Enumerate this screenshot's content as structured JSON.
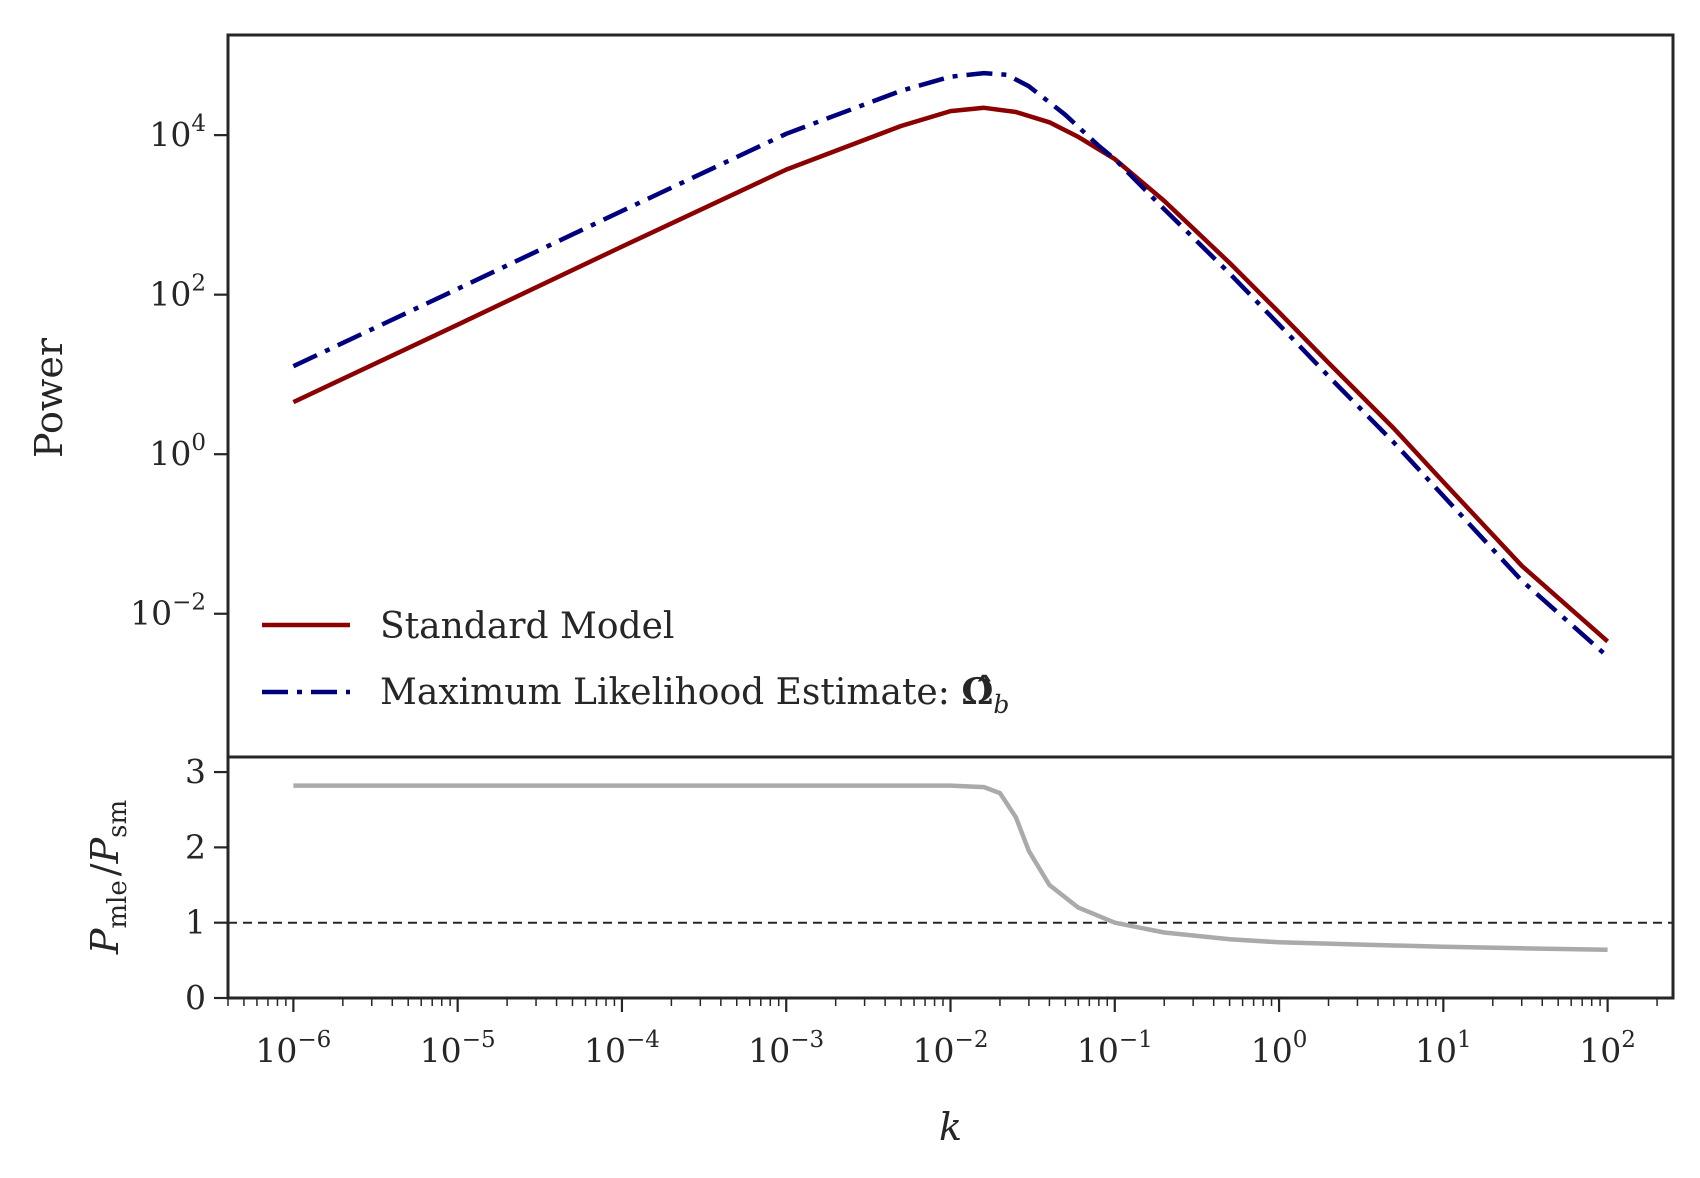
{
  "chart_data": [
    {
      "type": "line",
      "panel": "top",
      "xscale": "log",
      "yscale": "log",
      "xlim": [
        4e-07,
        250
      ],
      "ylim": [
        0.00016,
        180000
      ],
      "ylabel": "Power",
      "yticks": [
        {
          "base": "10",
          "exp": "4",
          "value": 10000
        },
        {
          "base": "10",
          "exp": "2",
          "value": 100
        },
        {
          "base": "10",
          "exp": "0",
          "value": 1
        },
        {
          "base": "10",
          "exp": "−2",
          "value": 0.01
        }
      ],
      "legend": {
        "placement": "lower-left",
        "entries": [
          {
            "label": "Standard Model",
            "color": "#8b0000",
            "style": "solid"
          },
          {
            "label": "Maximum Likelihood Estimate: ",
            "math": "Ω̂",
            "sub": "b",
            "color": "#00007f",
            "style": "dashdot"
          }
        ]
      },
      "series": [
        {
          "name": "Standard Model",
          "color": "#8b0000",
          "style": "solid",
          "points": [
            [
              1e-06,
              4.5
            ],
            [
              1e-05,
              42
            ],
            [
              0.0001,
              400
            ],
            [
              0.001,
              3700
            ],
            [
              0.005,
              13000
            ],
            [
              0.01,
              20000
            ],
            [
              0.016,
              22000
            ],
            [
              0.025,
              19500
            ],
            [
              0.04,
              14500
            ],
            [
              0.06,
              9500
            ],
            [
              0.1,
              5000
            ],
            [
              0.2,
              1500
            ],
            [
              0.5,
              250
            ],
            [
              1,
              60
            ],
            [
              2,
              14
            ],
            [
              5,
              2.1
            ],
            [
              10,
              0.45
            ],
            [
              30,
              0.04
            ],
            [
              100,
              0.0045
            ]
          ]
        },
        {
          "name": "Maximum Likelihood Estimate: Ω̂b",
          "color": "#00007f",
          "style": "dashdot",
          "points": [
            [
              1e-06,
              12.7
            ],
            [
              1e-05,
              118
            ],
            [
              0.0001,
              1120
            ],
            [
              0.001,
              10400
            ],
            [
              0.005,
              36000
            ],
            [
              0.01,
              54000
            ],
            [
              0.016,
              60000
            ],
            [
              0.022,
              57000
            ],
            [
              0.03,
              41000
            ],
            [
              0.05,
              18000
            ],
            [
              0.08,
              7300
            ],
            [
              0.1,
              5000
            ],
            [
              0.2,
              1180
            ],
            [
              0.5,
              185
            ],
            [
              1,
              42
            ],
            [
              2,
              9.5
            ],
            [
              5,
              1.4
            ],
            [
              10,
              0.3
            ],
            [
              30,
              0.026
            ],
            [
              100,
              0.0029
            ]
          ]
        }
      ]
    },
    {
      "type": "line",
      "panel": "bottom",
      "xscale": "log",
      "yscale": "linear",
      "xlim": [
        4e-07,
        250
      ],
      "ylim": [
        0,
        3.2
      ],
      "xlabel": "k",
      "ylabel": {
        "P": "P",
        "num_sub": "mle",
        "sep": "/",
        "den_sub": "sm"
      },
      "xticks": [
        {
          "base": "10",
          "exp": "−6",
          "value": 1e-06
        },
        {
          "base": "10",
          "exp": "−5",
          "value": 1e-05
        },
        {
          "base": "10",
          "exp": "−4",
          "value": 0.0001
        },
        {
          "base": "10",
          "exp": "−3",
          "value": 0.001
        },
        {
          "base": "10",
          "exp": "−2",
          "value": 0.01
        },
        {
          "base": "10",
          "exp": "−1",
          "value": 0.1
        },
        {
          "base": "10",
          "exp": "0",
          "value": 1
        },
        {
          "base": "10",
          "exp": "1",
          "value": 10
        },
        {
          "base": "10",
          "exp": "2",
          "value": 100
        }
      ],
      "yticks": [
        {
          "label": "3",
          "value": 3
        },
        {
          "label": "2",
          "value": 2
        },
        {
          "label": "1",
          "value": 1
        },
        {
          "label": "0",
          "value": 0
        }
      ],
      "reference_line": {
        "y": 1,
        "style": "dashed",
        "color": "#262626"
      },
      "series": [
        {
          "color": "#aaaaaa",
          "style": "solid",
          "points": [
            [
              1e-06,
              2.82
            ],
            [
              0.001,
              2.82
            ],
            [
              0.01,
              2.82
            ],
            [
              0.016,
              2.8
            ],
            [
              0.02,
              2.72
            ],
            [
              0.025,
              2.4
            ],
            [
              0.03,
              1.95
            ],
            [
              0.04,
              1.5
            ],
            [
              0.06,
              1.2
            ],
            [
              0.1,
              1.0
            ],
            [
              0.2,
              0.87
            ],
            [
              0.5,
              0.78
            ],
            [
              1,
              0.74
            ],
            [
              3,
              0.71
            ],
            [
              10,
              0.68
            ],
            [
              30,
              0.66
            ],
            [
              100,
              0.64
            ]
          ]
        }
      ]
    }
  ]
}
